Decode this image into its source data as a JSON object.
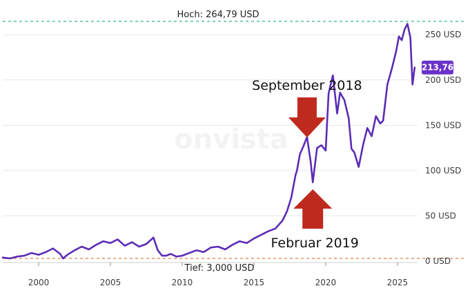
{
  "watermark": "onvista",
  "colors": {
    "line": "#5b2bb5",
    "badge": "#6a32c9",
    "high_line": "#3fbf9a",
    "low_line": "#e08a5a",
    "arrow": "#bf2a1e",
    "grid": "#e6e6e6"
  },
  "chart_data": {
    "type": "line",
    "title": "",
    "xlabel": "",
    "ylabel": "",
    "unit": "USD",
    "xlim": [
      1997.5,
      2026.4
    ],
    "ylim": [
      0,
      270
    ],
    "x_ticks": [
      2000,
      2005,
      2010,
      2015,
      2020,
      2025
    ],
    "x_tick_labels": [
      "2000",
      "2005",
      "2010",
      "2015",
      "2020",
      "2025"
    ],
    "y_ticks": [
      0,
      50,
      100,
      150,
      200,
      250
    ],
    "y_tick_labels": [
      "0 USD",
      "50 USD",
      "100 USD",
      "150 USD",
      "200 USD",
      "250 USD"
    ],
    "high": {
      "value": 264.79,
      "label": "Hoch: 264,79 USD"
    },
    "low": {
      "value": 3.0,
      "label": "Tief: 3,000 USD"
    },
    "last": {
      "value": 213.76,
      "label": "213,76"
    },
    "annotations": [
      {
        "text": "September 2018",
        "x": 2018.7,
        "direction": "down"
      },
      {
        "text": "Februar 2019",
        "x": 2019.1,
        "direction": "up"
      }
    ],
    "series": [
      {
        "x": [
          1997.5,
          1998.0,
          1998.5,
          1999.0,
          1999.5,
          2000.0,
          2000.5,
          2001.0,
          2001.5,
          2001.7,
          2002.0,
          2002.5,
          2003.0,
          2003.5,
          2004.0,
          2004.5,
          2005.0,
          2005.5,
          2006.0,
          2006.5,
          2007.0,
          2007.5,
          2008.0,
          2008.3,
          2008.6,
          2008.9,
          2009.2,
          2009.6,
          2010.0,
          2010.5,
          2011.0,
          2011.5,
          2012.0,
          2012.5,
          2013.0,
          2013.5,
          2014.0,
          2014.5,
          2015.0,
          2015.5,
          2016.0,
          2016.5,
          2017.0,
          2017.3,
          2017.6,
          2017.9,
          2018.0,
          2018.2,
          2018.4,
          2018.7,
          2018.95,
          2019.1,
          2019.4,
          2019.7,
          2020.0,
          2020.2,
          2020.5,
          2020.8,
          2021.0,
          2021.3,
          2021.6,
          2021.8,
          2022.0,
          2022.3,
          2022.6,
          2022.9,
          2023.2,
          2023.5,
          2023.8,
          2024.0,
          2024.3,
          2024.6,
          2024.9,
          2025.1,
          2025.3,
          2025.5,
          2025.7,
          2025.9,
          2026.05,
          2026.2
        ],
        "y": [
          4,
          3,
          5,
          6,
          9,
          7,
          10,
          14,
          8,
          3,
          7,
          12,
          16,
          13,
          18,
          22,
          20,
          24,
          17,
          21,
          16,
          19,
          26,
          12,
          6,
          6,
          8,
          5,
          6,
          9,
          12,
          10,
          15,
          16,
          13,
          18,
          22,
          20,
          25,
          29,
          33,
          36,
          45,
          55,
          70,
          95,
          100,
          118,
          125,
          137,
          110,
          87,
          125,
          128,
          122,
          185,
          205,
          163,
          186,
          178,
          158,
          124,
          120,
          104,
          128,
          147,
          138,
          160,
          152,
          155,
          195,
          212,
          231,
          248,
          244,
          256,
          262,
          247,
          195,
          213.76
        ]
      }
    ]
  }
}
